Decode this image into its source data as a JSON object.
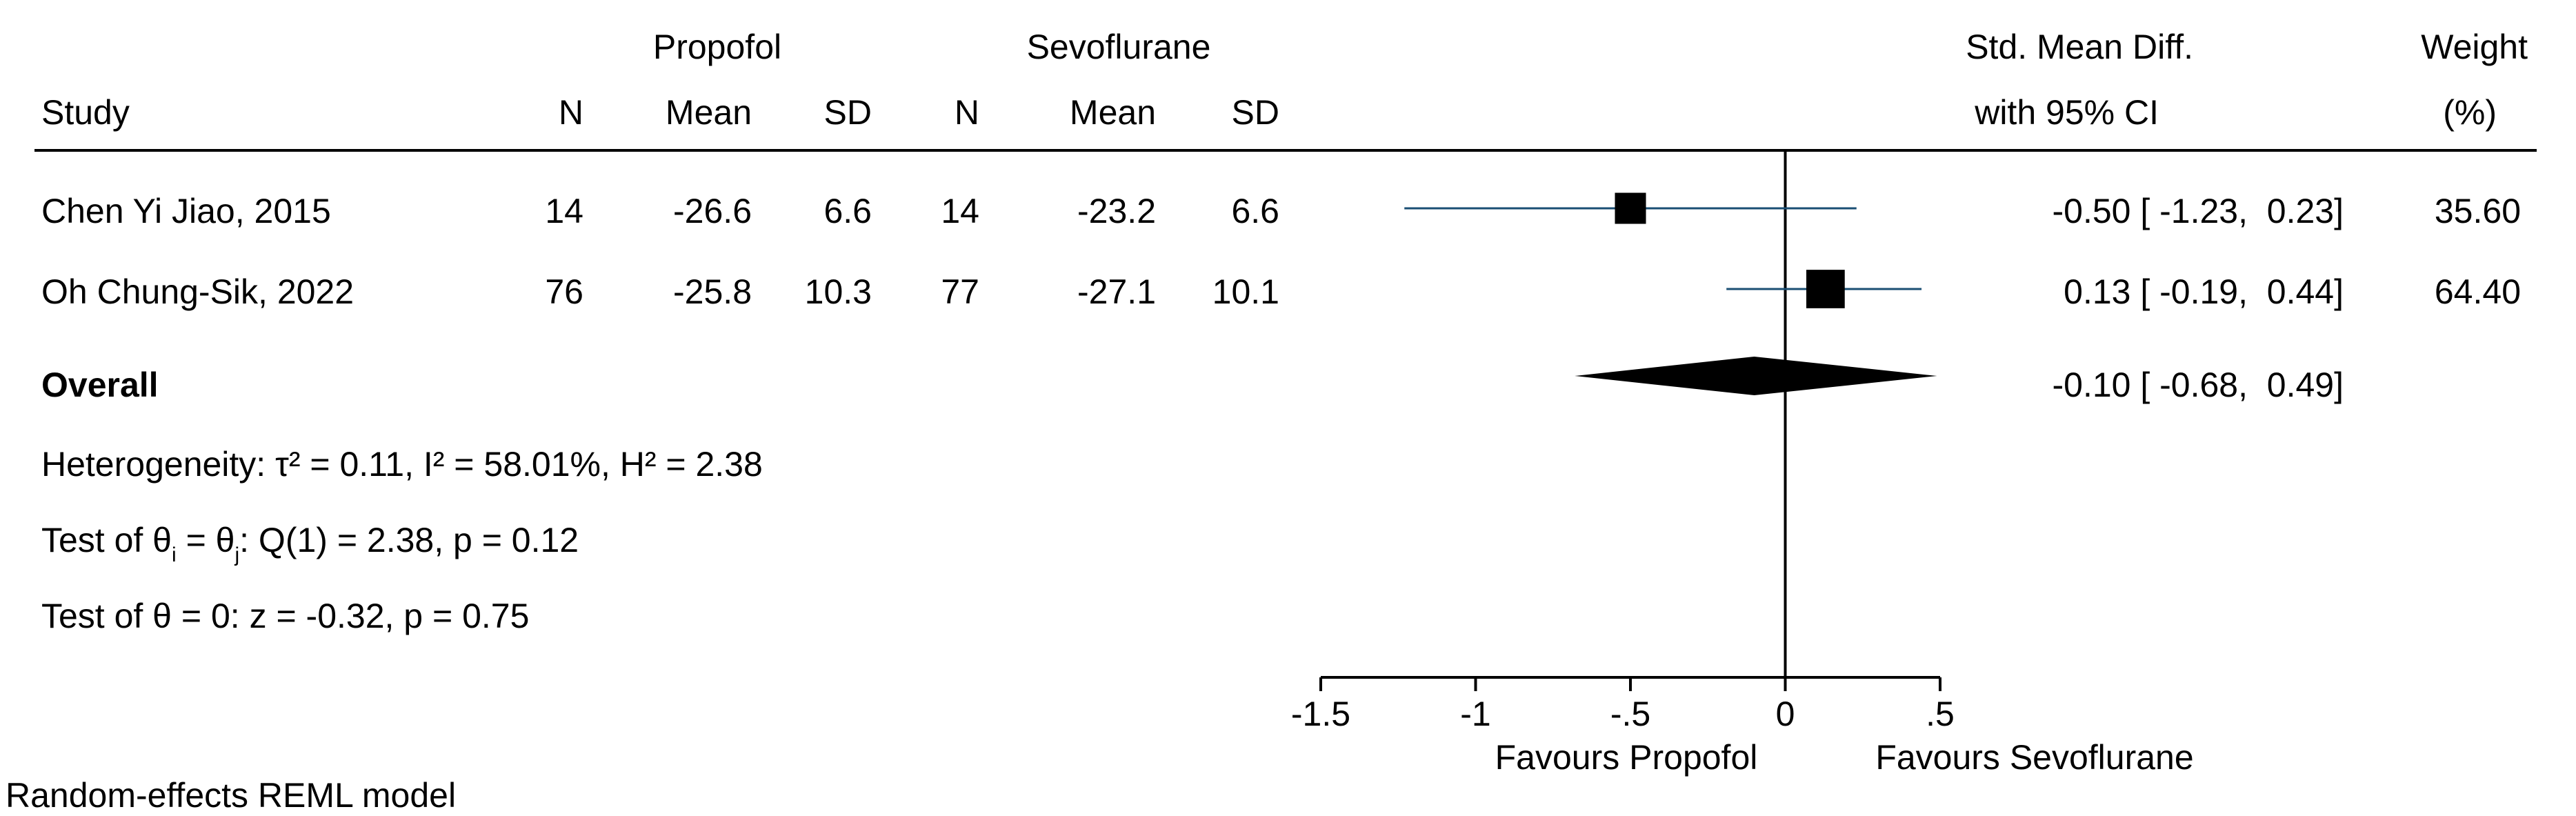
{
  "header": {
    "group1": "Propofol",
    "group2": "Sevoflurane",
    "col_study": "Study",
    "col_n": "N",
    "col_mean": "Mean",
    "col_sd": "SD",
    "col_effect_l1": "Std. Mean Diff.",
    "col_effect_l2": "with 95% CI",
    "col_weight_l1": "Weight",
    "col_weight_l2": "(%)"
  },
  "studies": [
    {
      "name": "Chen Yi Jiao, 2015",
      "n1": "14",
      "mean1": "-26.6",
      "sd1": "6.6",
      "n2": "14",
      "mean2": "-23.2",
      "sd2": "6.6",
      "effect_text": "-0.50 [ -1.23,  0.23]",
      "weight_text": "35.60"
    },
    {
      "name": "Oh Chung-Sik, 2022",
      "n1": "76",
      "mean1": "-25.8",
      "sd1": "10.3",
      "n2": "77",
      "mean2": "-27.1",
      "sd2": "10.1",
      "effect_text": "0.13 [ -0.19,  0.44]",
      "weight_text": "64.40"
    }
  ],
  "overall": {
    "label": "Overall",
    "effect_text": "-0.10 [ -0.68,  0.49]"
  },
  "stats": {
    "heterogeneity": "Heterogeneity: τ² = 0.11, I² = 58.01%, H² = 2.38",
    "test_eq_a": "Test of θ",
    "test_eq_sub_i": "i",
    "test_eq_b": " = θ",
    "test_eq_sub_j": "j",
    "test_eq_c": ": Q(1) = 2.38, p = 0.12",
    "test_zero": "Test of θ = 0: z = -0.32, p = 0.75"
  },
  "footer": {
    "favours_left": "Favours Propofol",
    "favours_right": "Favours Sevoflurane",
    "model": "Random-effects REML model"
  },
  "colors": {
    "ci_line": "#1a4e73",
    "marker": "#000000",
    "axis": "#000000"
  },
  "chart_data": {
    "type": "forest",
    "xlim": [
      -1.5,
      0.5
    ],
    "xticks": [
      -1.5,
      -1,
      -0.5,
      0,
      0.5
    ],
    "xtick_labels": [
      "-1.5",
      "-1",
      "-.5",
      "0",
      ".5"
    ],
    "null_line": 0,
    "studies": [
      {
        "name": "Chen Yi Jiao, 2015",
        "estimate": -0.5,
        "ci_low": -1.23,
        "ci_high": 0.23,
        "weight": 35.6
      },
      {
        "name": "Oh Chung-Sik, 2022",
        "estimate": 0.13,
        "ci_low": -0.19,
        "ci_high": 0.44,
        "weight": 64.4
      }
    ],
    "overall": {
      "estimate": -0.1,
      "ci_low": -0.68,
      "ci_high": 0.49
    }
  }
}
